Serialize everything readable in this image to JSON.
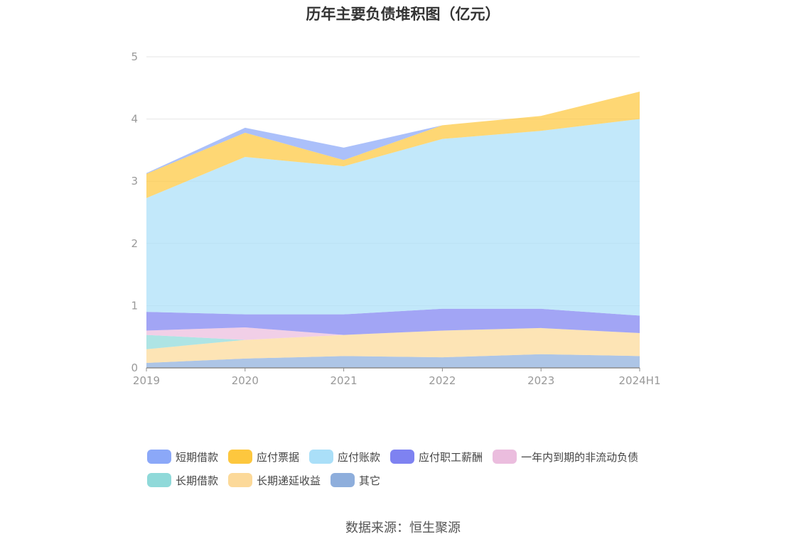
{
  "chart_data": {
    "type": "area",
    "stacked": true,
    "title": "历年主要负债堆积图（亿元）",
    "categories": [
      "2019",
      "2020",
      "2021",
      "2022",
      "2023",
      "2024H1"
    ],
    "ylim": [
      0,
      5
    ],
    "yticks": [
      "0",
      "1",
      "2",
      "3",
      "4",
      "5"
    ],
    "grid": true,
    "legend_position": "bottom",
    "series": [
      {
        "name": "其它",
        "color": "#8eaedc",
        "values": [
          0.08,
          0.15,
          0.19,
          0.17,
          0.22,
          0.19
        ]
      },
      {
        "name": "长期递延收益",
        "color": "#fcd999",
        "values": [
          0.22,
          0.3,
          0.34,
          0.43,
          0.42,
          0.37
        ]
      },
      {
        "name": "长期借款",
        "color": "#8fd9d9",
        "values": [
          0.23,
          0.0,
          0.0,
          0.0,
          0.0,
          0.0
        ]
      },
      {
        "name": "一年内到期的非流动负债",
        "color": "#ebbdde",
        "values": [
          0.07,
          0.2,
          0.0,
          0.0,
          0.0,
          0.0
        ]
      },
      {
        "name": "应付职工薪酬",
        "color": "#7e82f1",
        "values": [
          0.3,
          0.21,
          0.33,
          0.35,
          0.31,
          0.28
        ]
      },
      {
        "name": "应付账款",
        "color": "#aadff8",
        "values": [
          1.83,
          2.53,
          2.38,
          2.73,
          2.86,
          3.16
        ]
      },
      {
        "name": "应付票据",
        "color": "#fdc73e",
        "values": [
          0.39,
          0.39,
          0.1,
          0.22,
          0.24,
          0.44
        ]
      },
      {
        "name": "短期借款",
        "color": "#8ba8f8",
        "values": [
          0.01,
          0.08,
          0.2,
          0.0,
          0.0,
          0.0
        ]
      }
    ]
  },
  "legend_order": [
    "短期借款",
    "应付票据",
    "应付账款",
    "应付职工薪酬",
    "一年内到期的非流动负债",
    "长期借款",
    "长期递延收益",
    "其它"
  ],
  "source": "数据来源：恒生聚源"
}
